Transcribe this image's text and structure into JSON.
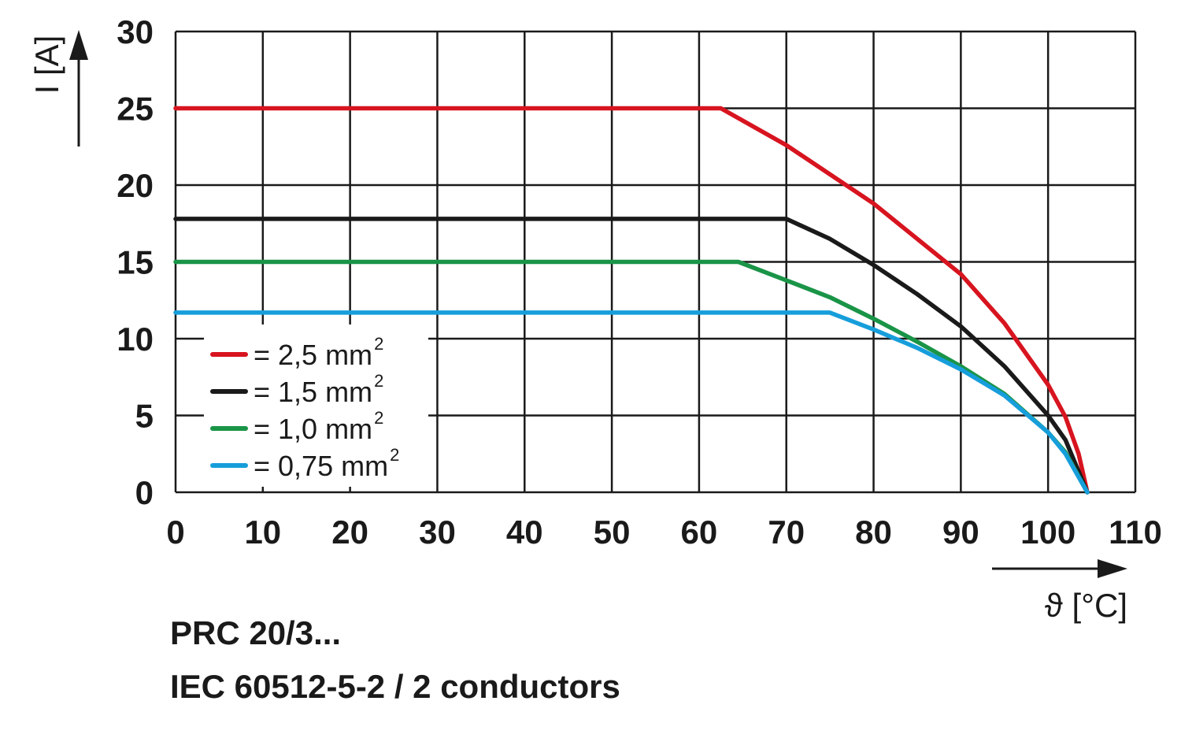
{
  "chart_data": {
    "type": "line",
    "xlabel": "ϑ [°C]",
    "ylabel": "I [A]",
    "xlim": [
      0,
      110
    ],
    "ylim": [
      0,
      30
    ],
    "x_ticks": [
      0,
      10,
      20,
      30,
      40,
      50,
      60,
      70,
      80,
      90,
      100,
      110
    ],
    "y_ticks": [
      0,
      5,
      10,
      15,
      20,
      25,
      30
    ],
    "grid": true,
    "legend_position": "lower-left",
    "series": [
      {
        "name": "= 2,5 mm",
        "name_superscript": "2",
        "color": "#d7141f",
        "points": [
          [
            0,
            25
          ],
          [
            62.5,
            25
          ],
          [
            70,
            22.6
          ],
          [
            80,
            18.8
          ],
          [
            90,
            14.2
          ],
          [
            95,
            11.0
          ],
          [
            100,
            7.0
          ],
          [
            102,
            4.9
          ],
          [
            103.5,
            2.5
          ],
          [
            104.5,
            0
          ]
        ]
      },
      {
        "name": "= 1,5 mm",
        "name_superscript": "2",
        "color": "#1a1a1a",
        "points": [
          [
            0,
            17.8
          ],
          [
            70,
            17.8
          ],
          [
            75,
            16.5
          ],
          [
            80,
            14.8
          ],
          [
            85,
            12.9
          ],
          [
            90,
            10.8
          ],
          [
            95,
            8.2
          ],
          [
            100,
            5.0
          ],
          [
            102,
            3.4
          ],
          [
            104.5,
            0
          ]
        ]
      },
      {
        "name": "= 1,0 mm",
        "name_superscript": "2",
        "color": "#1a9447",
        "points": [
          [
            0,
            15
          ],
          [
            64.5,
            15
          ],
          [
            70,
            13.8
          ],
          [
            75,
            12.7
          ],
          [
            80,
            11.3
          ],
          [
            85,
            9.8
          ],
          [
            90,
            8.2
          ],
          [
            95,
            6.4
          ],
          [
            100,
            3.9
          ],
          [
            102,
            2.6
          ],
          [
            104.5,
            0
          ]
        ]
      },
      {
        "name": "= 0,75 mm",
        "name_superscript": "2",
        "color": "#169edb",
        "points": [
          [
            0,
            11.7
          ],
          [
            75,
            11.7
          ],
          [
            80,
            10.6
          ],
          [
            85,
            9.4
          ],
          [
            90,
            8.0
          ],
          [
            95,
            6.3
          ],
          [
            100,
            3.9
          ],
          [
            102,
            2.5
          ],
          [
            104.5,
            0
          ]
        ]
      }
    ]
  },
  "captions": {
    "line1": "PRC 20/3...",
    "line2": "IEC 60512-5-2 / 2 conductors"
  }
}
